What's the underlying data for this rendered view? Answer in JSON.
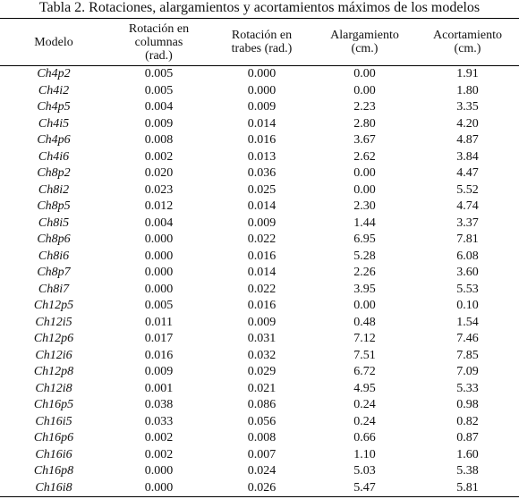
{
  "title": "Tabla 2. Rotaciones, alargamientos y acortamientos máximos de los modelos",
  "table": {
    "columns": [
      [
        "Modelo"
      ],
      [
        "Rotación en",
        "columnas",
        "(rad.)"
      ],
      [
        "Rotación en",
        "trabes (rad.)"
      ],
      [
        "Alargamiento",
        "(cm.)"
      ],
      [
        "Acortamiento",
        "(cm.)"
      ]
    ],
    "rows": [
      [
        "Ch4p2",
        "0.005",
        "0.000",
        "0.00",
        "1.91"
      ],
      [
        "Ch4i2",
        "0.005",
        "0.000",
        "0.00",
        "1.80"
      ],
      [
        "Ch4p5",
        "0.004",
        "0.009",
        "2.23",
        "3.35"
      ],
      [
        "Ch4i5",
        "0.009",
        "0.014",
        "2.80",
        "4.20"
      ],
      [
        "Ch4p6",
        "0.008",
        "0.016",
        "3.67",
        "4.87"
      ],
      [
        "Ch4i6",
        "0.002",
        "0.013",
        "2.62",
        "3.84"
      ],
      [
        "Ch8p2",
        "0.020",
        "0.036",
        "0.00",
        "4.47"
      ],
      [
        "Ch8i2",
        "0.023",
        "0.025",
        "0.00",
        "5.52"
      ],
      [
        "Ch8p5",
        "0.012",
        "0.014",
        "2.30",
        "4.74"
      ],
      [
        "Ch8i5",
        "0.004",
        "0.009",
        "1.44",
        "3.37"
      ],
      [
        "Ch8p6",
        "0.000",
        "0.022",
        "6.95",
        "7.81"
      ],
      [
        "Ch8i6",
        "0.000",
        "0.016",
        "5.28",
        "6.08"
      ],
      [
        "Ch8p7",
        "0.000",
        "0.014",
        "2.26",
        "3.60"
      ],
      [
        "Ch8i7",
        "0.000",
        "0.022",
        "3.95",
        "5.53"
      ],
      [
        "Ch12p5",
        "0.005",
        "0.016",
        "0.00",
        "0.10"
      ],
      [
        "Ch12i5",
        "0.011",
        "0.009",
        "0.48",
        "1.54"
      ],
      [
        "Ch12p6",
        "0.017",
        "0.031",
        "7.12",
        "7.46"
      ],
      [
        "Ch12i6",
        "0.016",
        "0.032",
        "7.51",
        "7.85"
      ],
      [
        "Ch12p8",
        "0.009",
        "0.029",
        "6.72",
        "7.09"
      ],
      [
        "Ch12i8",
        "0.001",
        "0.021",
        "4.95",
        "5.33"
      ],
      [
        "Ch16p5",
        "0.038",
        "0.086",
        "0.24",
        "0.98"
      ],
      [
        "Ch16i5",
        "0.033",
        "0.056",
        "0.24",
        "0.82"
      ],
      [
        "Ch16p6",
        "0.002",
        "0.008",
        "0.66",
        "0.87"
      ],
      [
        "Ch16i6",
        "0.002",
        "0.007",
        "1.10",
        "1.60"
      ],
      [
        "Ch16p8",
        "0.000",
        "0.024",
        "5.03",
        "5.38"
      ],
      [
        "Ch16i8",
        "0.000",
        "0.026",
        "5.47",
        "5.81"
      ]
    ]
  }
}
